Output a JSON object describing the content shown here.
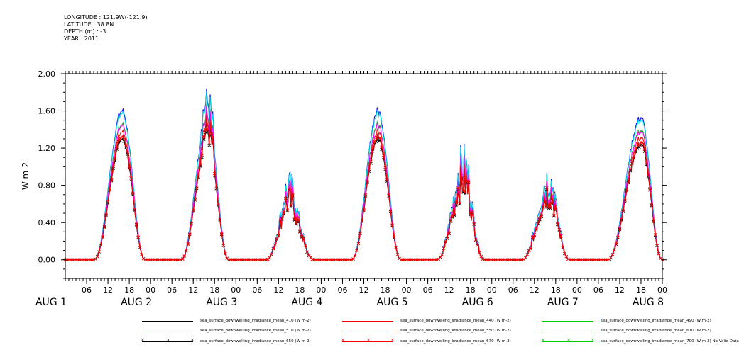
{
  "meta": {
    "longitude": "LONGITUDE : 121.9W(-121.9)",
    "latitude": "LATITUDE : 38.8N",
    "depth": "DEPTH (m) : -3",
    "year": "YEAR : 2011"
  },
  "chart_data": {
    "type": "line",
    "ylabel": "W m-2",
    "ylim": [
      -0.2,
      2.0
    ],
    "yticks": [
      0.0,
      0.4,
      0.8,
      1.2,
      1.6,
      2.0
    ],
    "ytick_labels": [
      "0.00",
      "0.40",
      "0.80",
      "1.20",
      "1.60",
      "2.00"
    ],
    "xlim": [
      0,
      168
    ],
    "x_unit": "hours since AUG 1 00:00",
    "hour_tick_labels": [
      "06",
      "12",
      "18",
      "00",
      "06",
      "12",
      "18",
      "00",
      "06",
      "12",
      "18",
      "00",
      "06",
      "12",
      "18",
      "00",
      "06",
      "12",
      "18",
      "00",
      "06",
      "12",
      "18",
      "00",
      "06",
      "12",
      "18",
      "00"
    ],
    "hour_tick_positions": [
      6,
      12,
      18,
      24,
      30,
      36,
      42,
      48,
      54,
      60,
      66,
      72,
      78,
      84,
      90,
      96,
      102,
      108,
      114,
      120,
      126,
      132,
      138,
      144,
      150,
      156,
      162,
      168
    ],
    "day_labels": [
      "AUG 1",
      "AUG 2",
      "AUG 3",
      "AUG 4",
      "AUG 5",
      "AUG 6",
      "AUG 7",
      "AUG 8"
    ],
    "day_label_positions": [
      -4,
      20,
      44,
      68,
      92,
      116,
      140,
      164
    ],
    "days": [
      {
        "sunrise": 8.0,
        "sunset": 22.5,
        "peak_hour": 16.0,
        "peak": 1.33,
        "cloudy": false,
        "spike": 0.0
      },
      {
        "sunrise": 32.5,
        "sunset": 46.0,
        "peak_hour": 40.0,
        "peak": 1.28,
        "cloudy": false,
        "spike": 0.25
      },
      {
        "sunrise": 56.5,
        "sunset": 70.0,
        "peak_hour": 63.0,
        "peak": 0.62,
        "cloudy": true,
        "spike": 0.12
      },
      {
        "sunrise": 80.5,
        "sunset": 94.5,
        "peak_hour": 88.0,
        "peak": 1.33,
        "cloudy": false,
        "spike": 0.0
      },
      {
        "sunrise": 104.5,
        "sunset": 118.0,
        "peak_hour": 112.0,
        "peak": 0.85,
        "cloudy": true,
        "spike": 0.12
      },
      {
        "sunrise": 128.5,
        "sunset": 142.0,
        "peak_hour": 136.0,
        "peak": 0.72,
        "cloudy": true,
        "spike": 0.1
      },
      {
        "sunrise": 152.5,
        "sunset": 168.0,
        "peak_hour": 162.0,
        "peak": 1.27,
        "cloudy": false,
        "spike": 0.0
      }
    ],
    "series": [
      {
        "name": "sea_surface_downwelling_irradiance_mean_410 (W m-2)",
        "color": "#000000",
        "scale": 1.0,
        "marker": ""
      },
      {
        "name": "sea_surface_downwelling_irradiance_mean_440 (W m-2)",
        "color": "#ff0000",
        "scale": 1.04,
        "marker": ""
      },
      {
        "name": "sea_surface_downwelling_irradiance_mean_490 (W m-2)",
        "color": "#00cc00",
        "scale": 1.1,
        "marker": ""
      },
      {
        "name": "sea_surface_downwelling_irradiance_mean_510 (W m-2)",
        "color": "#0000ff",
        "scale": 1.21,
        "marker": ""
      },
      {
        "name": "sea_surface_downwelling_irradiance_mean_550 (W m-2)",
        "color": "#00dddd",
        "scale": 1.19,
        "marker": ""
      },
      {
        "name": "sea_surface_downwelling_irradiance_mean_610 (W m-2)",
        "color": "#ff00ff",
        "scale": 1.09,
        "marker": ""
      },
      {
        "name": "sea_surface_downwelling_irradiance_mean_650 (W m-2)",
        "color": "#000000",
        "scale": 0.98,
        "marker": "x"
      },
      {
        "name": "sea_surface_downwelling_irradiance_mean_670 (W m-2)",
        "color": "#ff0000",
        "scale": 1.0,
        "marker": "x"
      },
      {
        "name": "sea_surface_downwelling_irradiance_mean_700 (W m-2) No Valid Data",
        "color": "#00cc00",
        "scale": 0.0,
        "marker": "x"
      }
    ]
  }
}
